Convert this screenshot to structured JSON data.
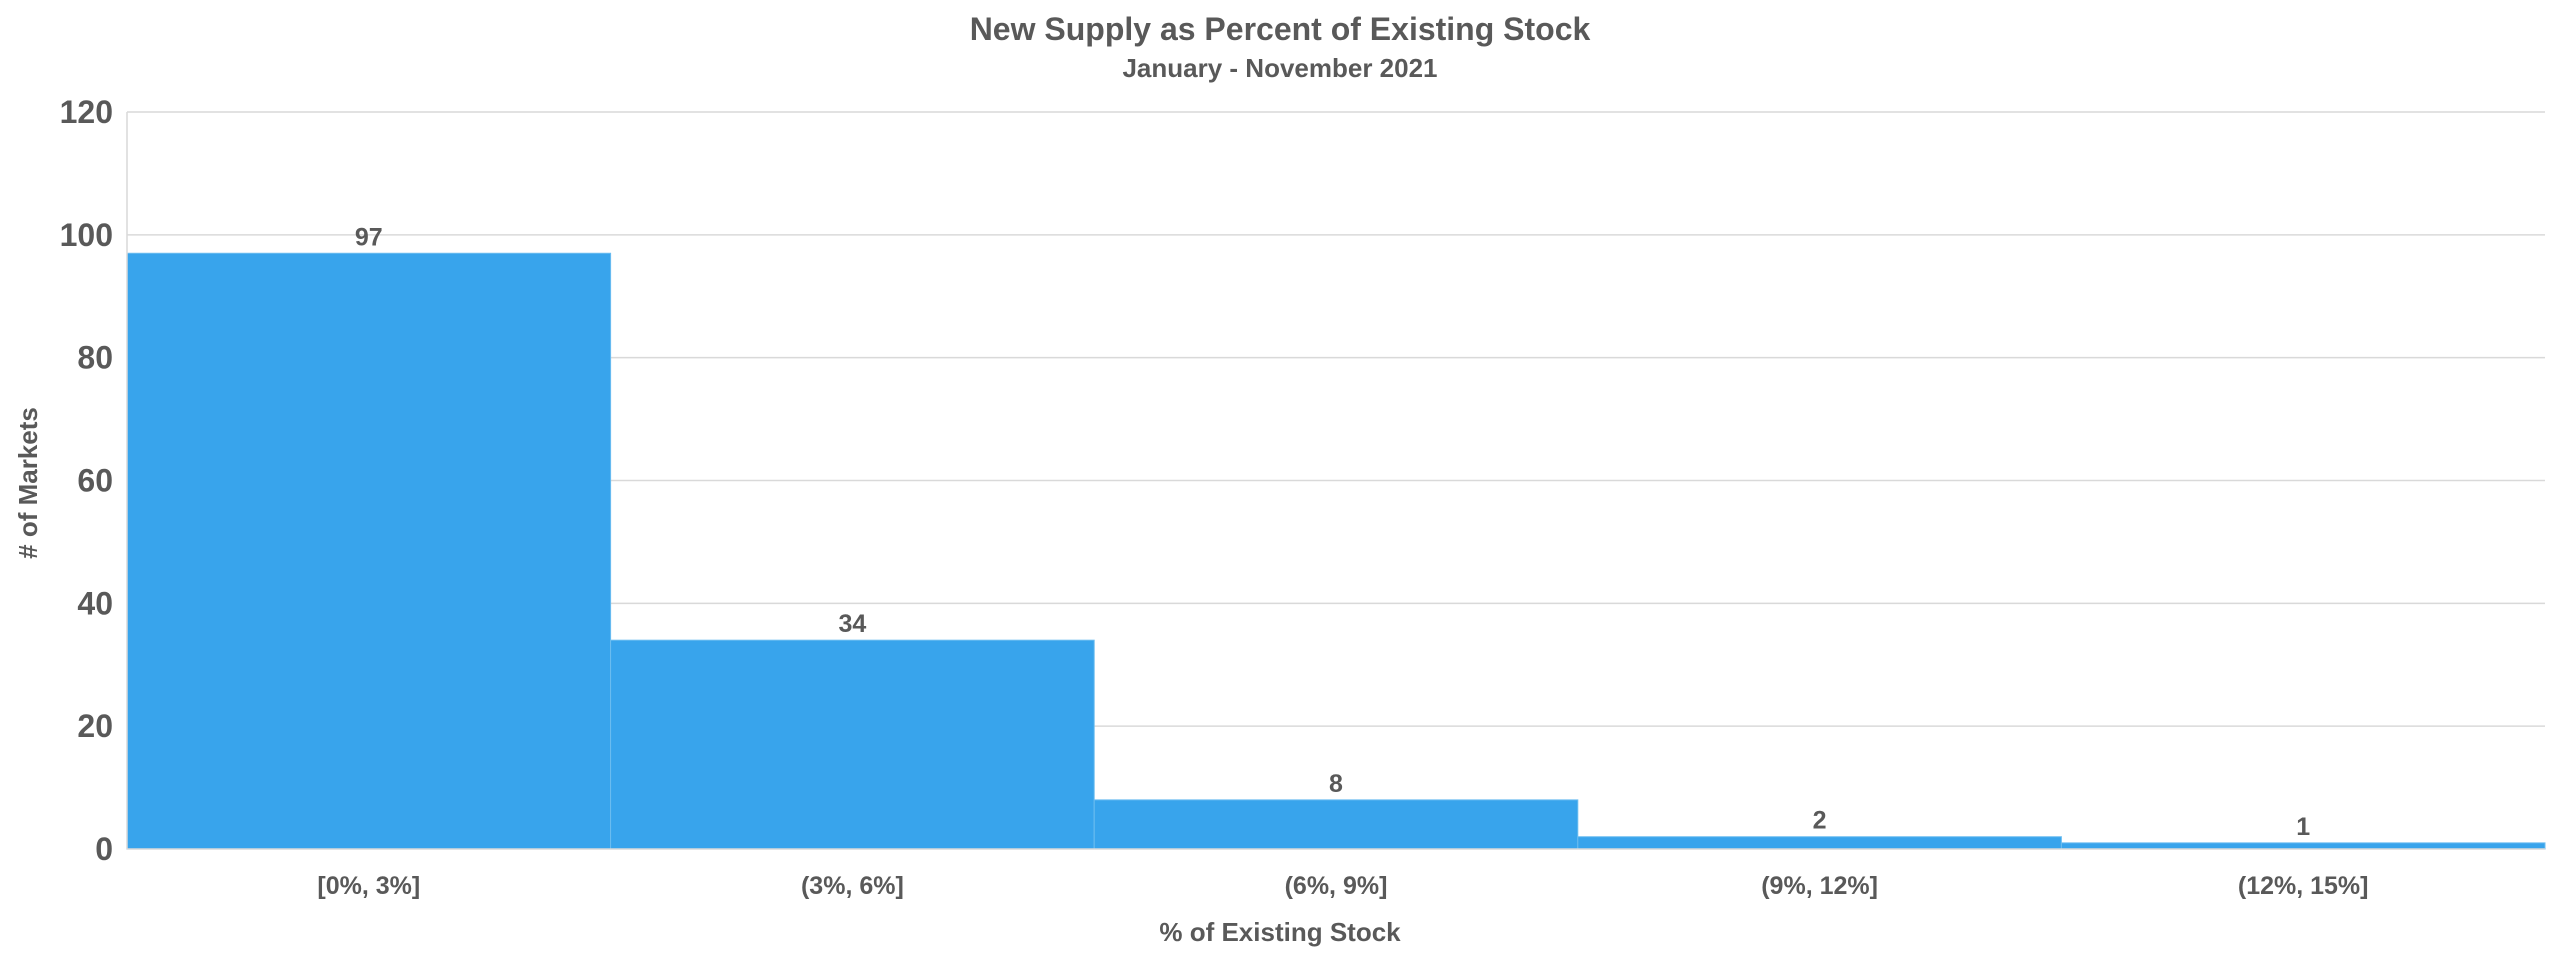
{
  "chart_data": {
    "type": "bar",
    "title": "New Supply as Percent of Existing Stock",
    "subtitle": "January - November 2021",
    "xlabel": "% of Existing Stock",
    "ylabel": "# of Markets",
    "categories": [
      "[0%, 3%]",
      "(3%, 6%]",
      "(6%, 9%]",
      "(9%, 12%]",
      "(12%, 15%]"
    ],
    "values": [
      97,
      34,
      8,
      2,
      1
    ],
    "data_labels": [
      "97",
      "34",
      "8",
      "2",
      "1"
    ],
    "ylim": [
      0,
      120
    ],
    "yticks": [
      0,
      20,
      40,
      60,
      80,
      100,
      120
    ],
    "ytick_labels": [
      "0",
      "20",
      "40",
      "60",
      "80",
      "100",
      "120"
    ],
    "bar_color": "#38a4ec",
    "grid": true,
    "legend": "none"
  }
}
